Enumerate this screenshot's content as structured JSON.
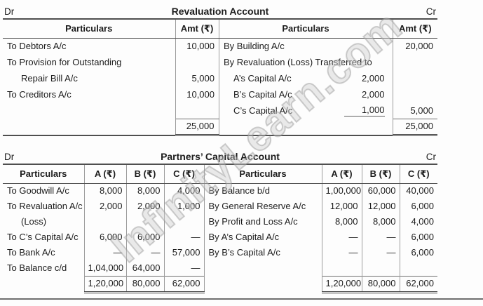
{
  "watermark": "InfinityLearn.com",
  "revaluation": {
    "dr_label": "Dr",
    "cr_label": "Cr",
    "title": "Revaluation Account",
    "headers": {
      "particulars": "Particulars",
      "amount": "Amt (₹)"
    },
    "rows": [
      {
        "d": "To Debtors A/c",
        "d_amt": "10,000",
        "c": "By Building A/c",
        "c_sub": "",
        "c_amt": "20,000"
      },
      {
        "d": "To Provision for Outstanding",
        "d_amt": "",
        "c": "By Revaluation (Loss) Transferred to",
        "c_sub": "",
        "c_amt": ""
      },
      {
        "d": "Repair Bill A/c",
        "d_amt": "5,000",
        "c": "A’s Capital A/c",
        "c_sub": "2,000",
        "c_amt": ""
      },
      {
        "d": "To Creditors A/c",
        "d_amt": "10,000",
        "c": "B’s Capital A/c",
        "c_sub": "2,000",
        "c_amt": ""
      },
      {
        "d": "",
        "d_amt": "",
        "c": "C’s Capital A/c",
        "c_sub": "1,000",
        "c_amt": "5,000"
      }
    ],
    "total": {
      "d_amt": "25,000",
      "c_amt": "25,000"
    }
  },
  "capital": {
    "dr_label": "Dr",
    "cr_label": "Cr",
    "title": "Partners’ Capital Account",
    "headers": {
      "particulars": "Particulars",
      "a": "A (₹)",
      "b": "B (₹)",
      "c": "C (₹)"
    },
    "rows": [
      {
        "d": "To Goodwill A/c",
        "da": "8,000",
        "db": "8,000",
        "dc": "4,000",
        "cr": "By Balance b/d",
        "ca": "1,00,000",
        "cb": "60,000",
        "cc": "40,000"
      },
      {
        "d": "To Revaluation A/c",
        "da": "2,000",
        "db": "2,000",
        "dc": "1,000",
        "cr": "By General Reserve A/c",
        "ca": "12,000",
        "cb": "12,000",
        "cc": "6,000"
      },
      {
        "d": "(Loss)",
        "da": "",
        "db": "",
        "dc": "",
        "cr": "By Profit and Loss A/c",
        "ca": "8,000",
        "cb": "8,000",
        "cc": "4,000"
      },
      {
        "d": "To C’s Capital A/c",
        "da": "6,000",
        "db": "6,000",
        "dc": "—",
        "cr": "By A’s Capital A/c",
        "ca": "—",
        "cb": "—",
        "cc": "6,000"
      },
      {
        "d": "To Bank A/c",
        "da": "—",
        "db": "—",
        "dc": "57,000",
        "cr": "By B’s Capital A/c",
        "ca": "—",
        "cb": "—",
        "cc": "6,000"
      },
      {
        "d": "To Balance c/d",
        "da": "1,04,000",
        "db": "64,000",
        "dc": "—",
        "cr": "",
        "ca": "",
        "cb": "",
        "cc": ""
      }
    ],
    "total": {
      "da": "1,20,000",
      "db": "80,000",
      "dc": "62,000",
      "ca": "1,20,000",
      "cb": "80,000",
      "cc": "62,000"
    }
  }
}
